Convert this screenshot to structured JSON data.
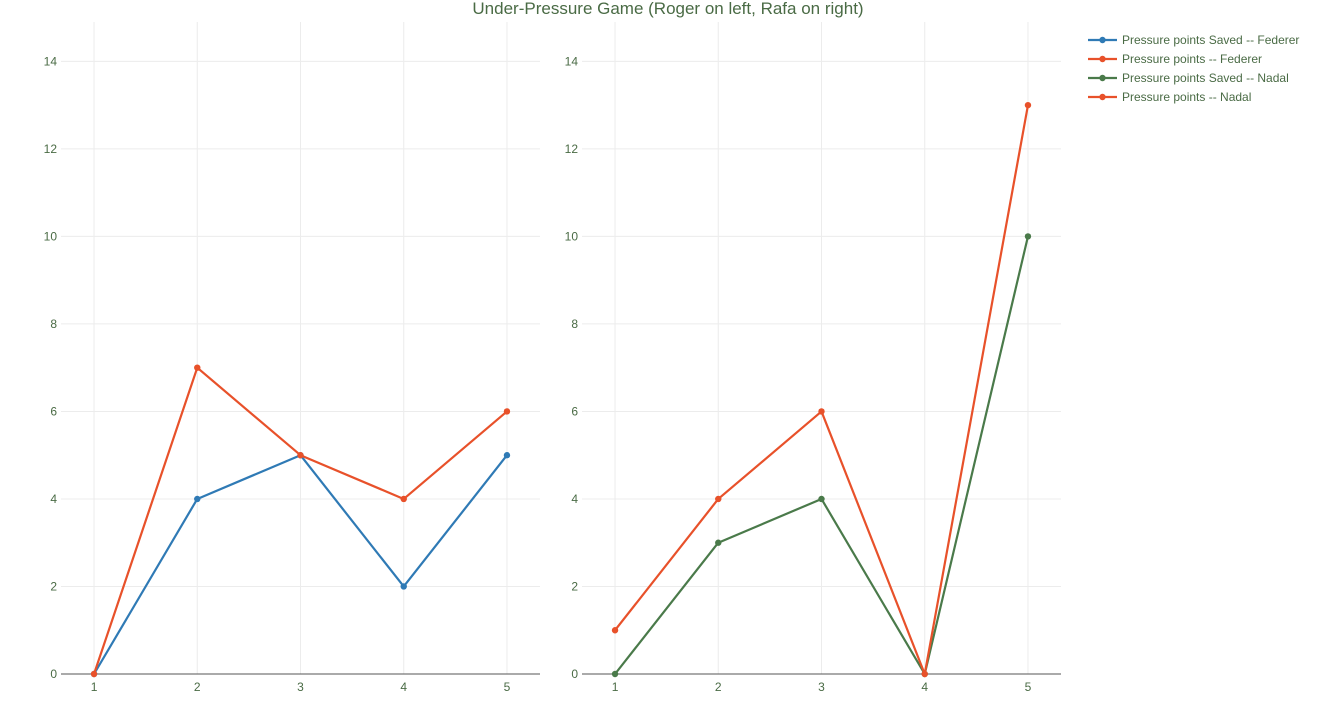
{
  "chart_data": {
    "type": "line",
    "title": "Under-Pressure Game (Roger on left, Rafa on right)",
    "text_color": "#4a6b45",
    "grid": true,
    "legend_position": "top-right",
    "panels": [
      {
        "name": "left",
        "x": [
          1,
          2,
          3,
          4,
          5
        ],
        "xlim": [
          0.68,
          5.32
        ],
        "ylim": [
          0,
          14.9
        ],
        "y_ticks": [
          0,
          2,
          4,
          6,
          8,
          10,
          12,
          14
        ],
        "series": [
          {
            "name": "Pressure points Saved -- Federer",
            "color": "#2f7ab5",
            "values": [
              0,
              4,
              5,
              2,
              5
            ]
          },
          {
            "name": "Pressure points -- Federer",
            "color": "#e8512a",
            "values": [
              0,
              7,
              5,
              4,
              6
            ]
          }
        ]
      },
      {
        "name": "right",
        "x": [
          1,
          2,
          3,
          4,
          5
        ],
        "xlim": [
          0.68,
          5.32
        ],
        "ylim": [
          0,
          14.9
        ],
        "y_ticks": [
          0,
          2,
          4,
          6,
          8,
          10,
          12,
          14
        ],
        "series": [
          {
            "name": "Pressure points Saved -- Nadal",
            "color": "#4a7a4a",
            "values": [
              0,
              3,
              4,
              0,
              10
            ]
          },
          {
            "name": "Pressure points -- Nadal",
            "color": "#e8512a",
            "values": [
              1,
              4,
              6,
              0,
              13
            ]
          }
        ]
      }
    ],
    "legend": [
      {
        "label": "Pressure points Saved -- Federer",
        "color": "#2f7ab5"
      },
      {
        "label": "Pressure points -- Federer",
        "color": "#e8512a"
      },
      {
        "label": "Pressure points Saved -- Nadal",
        "color": "#4a7a4a"
      },
      {
        "label": "Pressure points -- Nadal",
        "color": "#e8512a"
      }
    ]
  }
}
